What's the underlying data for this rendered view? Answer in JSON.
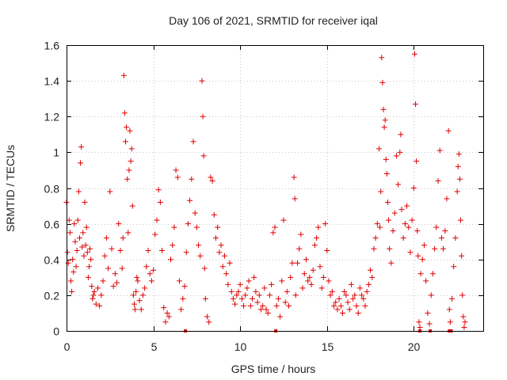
{
  "chart_data": {
    "type": "scatter",
    "title": "Day 106 of 2021, SRMTID for receiver iqal",
    "xlabel": "GPS time / hours",
    "ylabel": "SRMTID / TECUs",
    "xlim": [
      0,
      24
    ],
    "ylim": [
      0,
      1.6
    ],
    "xticks": [
      0,
      5,
      10,
      15,
      20
    ],
    "xtick_labels": [
      "0",
      "5",
      "10",
      "15",
      "20"
    ],
    "yticks": [
      0,
      0.2,
      0.4,
      0.6,
      0.8,
      1.0,
      1.2,
      1.4,
      1.6
    ],
    "ytick_labels": [
      "0",
      "0.2",
      "0.4",
      "0.6",
      "0.8",
      "1",
      "1.2",
      "1.4",
      "1.6"
    ],
    "grid": true,
    "marker": "+",
    "color": "#e00000",
    "series": [
      {
        "name": "SRMTID",
        "points": [
          [
            0.0,
            0.72
          ],
          [
            0.05,
            0.44
          ],
          [
            0.1,
            0.38
          ],
          [
            0.15,
            0.62
          ],
          [
            0.2,
            0.55
          ],
          [
            0.25,
            0.28
          ],
          [
            0.3,
            0.22
          ],
          [
            0.35,
            0.4
          ],
          [
            0.4,
            0.33
          ],
          [
            0.45,
            0.6
          ],
          [
            0.5,
            0.5
          ],
          [
            0.55,
            0.36
          ],
          [
            0.6,
            0.45
          ],
          [
            0.65,
            0.62
          ],
          [
            0.7,
            0.78
          ],
          [
            0.75,
            0.52
          ],
          [
            0.8,
            0.94
          ],
          [
            0.85,
            1.03
          ],
          [
            0.9,
            0.47
          ],
          [
            0.95,
            0.55
          ],
          [
            1.0,
            0.42
          ],
          [
            1.05,
            0.72
          ],
          [
            1.1,
            0.48
          ],
          [
            1.15,
            0.58
          ],
          [
            1.2,
            0.44
          ],
          [
            1.25,
            0.3
          ],
          [
            1.3,
            0.36
          ],
          [
            1.35,
            0.46
          ],
          [
            1.4,
            0.4
          ],
          [
            1.45,
            0.25
          ],
          [
            1.5,
            0.18
          ],
          [
            1.55,
            0.2
          ],
          [
            1.6,
            0.22
          ],
          [
            1.7,
            0.15
          ],
          [
            1.8,
            0.24
          ],
          [
            1.9,
            0.14
          ],
          [
            2.0,
            0.2
          ],
          [
            2.1,
            0.28
          ],
          [
            2.2,
            0.42
          ],
          [
            2.3,
            0.52
          ],
          [
            2.4,
            0.35
          ],
          [
            2.5,
            0.78
          ],
          [
            2.6,
            0.46
          ],
          [
            2.7,
            0.25
          ],
          [
            2.8,
            0.32
          ],
          [
            2.9,
            0.27
          ],
          [
            3.0,
            0.6
          ],
          [
            3.1,
            0.45
          ],
          [
            3.2,
            0.35
          ],
          [
            3.25,
            0.52
          ],
          [
            3.3,
            1.43
          ],
          [
            3.35,
            1.22
          ],
          [
            3.4,
            1.06
          ],
          [
            3.45,
            1.14
          ],
          [
            3.5,
            0.85
          ],
          [
            3.55,
            0.55
          ],
          [
            3.6,
            0.9
          ],
          [
            3.65,
            1.12
          ],
          [
            3.7,
            0.95
          ],
          [
            3.75,
            1.02
          ],
          [
            3.8,
            0.7
          ],
          [
            3.85,
            0.2
          ],
          [
            3.9,
            0.15
          ],
          [
            3.95,
            0.12
          ],
          [
            4.0,
            0.22
          ],
          [
            4.05,
            0.3
          ],
          [
            4.1,
            0.28
          ],
          [
            4.2,
            0.17
          ],
          [
            4.3,
            0.12
          ],
          [
            4.4,
            0.2
          ],
          [
            4.5,
            0.24
          ],
          [
            4.6,
            0.36
          ],
          [
            4.7,
            0.45
          ],
          [
            4.8,
            0.32
          ],
          [
            4.9,
            0.28
          ],
          [
            5.0,
            0.34
          ],
          [
            5.1,
            0.54
          ],
          [
            5.2,
            0.62
          ],
          [
            5.3,
            0.79
          ],
          [
            5.4,
            0.72
          ],
          [
            5.5,
            0.45
          ],
          [
            5.6,
            0.13
          ],
          [
            5.7,
            0.05
          ],
          [
            5.8,
            0.1
          ],
          [
            5.9,
            0.08
          ],
          [
            6.0,
            0.4
          ],
          [
            6.1,
            0.48
          ],
          [
            6.2,
            0.58
          ],
          [
            6.3,
            0.9
          ],
          [
            6.4,
            0.86
          ],
          [
            6.5,
            0.28
          ],
          [
            6.6,
            0.12
          ],
          [
            6.7,
            0.18
          ],
          [
            6.8,
            0.25
          ],
          [
            6.9,
            0.44
          ],
          [
            7.0,
            0.6
          ],
          [
            7.1,
            0.73
          ],
          [
            7.2,
            0.85
          ],
          [
            7.3,
            1.06
          ],
          [
            7.4,
            0.66
          ],
          [
            7.5,
            0.58
          ],
          [
            7.6,
            0.48
          ],
          [
            7.7,
            0.42
          ],
          [
            7.8,
            1.4
          ],
          [
            7.85,
            1.2
          ],
          [
            7.9,
            0.98
          ],
          [
            7.95,
            0.35
          ],
          [
            8.0,
            0.18
          ],
          [
            8.1,
            0.08
          ],
          [
            8.2,
            0.05
          ],
          [
            8.3,
            0.86
          ],
          [
            8.4,
            0.84
          ],
          [
            8.5,
            0.65
          ],
          [
            8.6,
            0.52
          ],
          [
            8.7,
            0.58
          ],
          [
            8.8,
            0.44
          ],
          [
            8.9,
            0.48
          ],
          [
            9.0,
            0.36
          ],
          [
            9.1,
            0.42
          ],
          [
            9.2,
            0.32
          ],
          [
            9.3,
            0.26
          ],
          [
            9.4,
            0.38
          ],
          [
            9.5,
            0.22
          ],
          [
            9.6,
            0.18
          ],
          [
            9.7,
            0.15
          ],
          [
            9.8,
            0.2
          ],
          [
            9.9,
            0.22
          ],
          [
            10.0,
            0.26
          ],
          [
            10.1,
            0.18
          ],
          [
            10.2,
            0.14
          ],
          [
            10.3,
            0.2
          ],
          [
            10.4,
            0.24
          ],
          [
            10.5,
            0.28
          ],
          [
            10.6,
            0.14
          ],
          [
            10.7,
            0.18
          ],
          [
            10.8,
            0.3
          ],
          [
            10.9,
            0.22
          ],
          [
            11.0,
            0.16
          ],
          [
            11.1,
            0.2
          ],
          [
            11.2,
            0.12
          ],
          [
            11.3,
            0.14
          ],
          [
            11.4,
            0.24
          ],
          [
            11.5,
            0.12
          ],
          [
            11.6,
            0.1
          ],
          [
            11.7,
            0.2
          ],
          [
            11.8,
            0.26
          ],
          [
            11.9,
            0.55
          ],
          [
            12.0,
            0.58
          ],
          [
            12.1,
            0.14
          ],
          [
            12.2,
            0.18
          ],
          [
            12.3,
            0.08
          ],
          [
            12.4,
            0.28
          ],
          [
            12.5,
            0.62
          ],
          [
            12.6,
            0.16
          ],
          [
            12.7,
            0.22
          ],
          [
            12.8,
            0.14
          ],
          [
            12.9,
            0.3
          ],
          [
            13.0,
            0.38
          ],
          [
            13.1,
            0.86
          ],
          [
            13.15,
            0.74
          ],
          [
            13.2,
            0.2
          ],
          [
            13.3,
            0.38
          ],
          [
            13.4,
            0.46
          ],
          [
            13.5,
            0.54
          ],
          [
            13.6,
            0.24
          ],
          [
            13.7,
            0.32
          ],
          [
            13.8,
            0.4
          ],
          [
            13.9,
            0.28
          ],
          [
            14.0,
            0.3
          ],
          [
            14.1,
            0.26
          ],
          [
            14.2,
            0.34
          ],
          [
            14.3,
            0.48
          ],
          [
            14.4,
            0.52
          ],
          [
            14.5,
            0.58
          ],
          [
            14.6,
            0.36
          ],
          [
            14.7,
            0.24
          ],
          [
            14.8,
            0.3
          ],
          [
            14.9,
            0.6
          ],
          [
            15.0,
            0.45
          ],
          [
            15.1,
            0.28
          ],
          [
            15.2,
            0.2
          ],
          [
            15.3,
            0.22
          ],
          [
            15.4,
            0.14
          ],
          [
            15.5,
            0.16
          ],
          [
            15.6,
            0.12
          ],
          [
            15.7,
            0.18
          ],
          [
            15.8,
            0.14
          ],
          [
            15.9,
            0.1
          ],
          [
            16.0,
            0.22
          ],
          [
            16.1,
            0.2
          ],
          [
            16.2,
            0.16
          ],
          [
            16.3,
            0.12
          ],
          [
            16.4,
            0.26
          ],
          [
            16.5,
            0.18
          ],
          [
            16.6,
            0.2
          ],
          [
            16.7,
            0.14
          ],
          [
            16.8,
            0.1
          ],
          [
            16.9,
            0.24
          ],
          [
            17.0,
            0.2
          ],
          [
            17.1,
            0.18
          ],
          [
            17.2,
            0.14
          ],
          [
            17.3,
            0.22
          ],
          [
            17.4,
            0.26
          ],
          [
            17.5,
            0.34
          ],
          [
            17.6,
            0.3
          ],
          [
            17.7,
            0.46
          ],
          [
            17.8,
            0.52
          ],
          [
            17.9,
            0.6
          ],
          [
            18.0,
            1.02
          ],
          [
            18.05,
            0.58
          ],
          [
            18.1,
            0.78
          ],
          [
            18.15,
            1.53
          ],
          [
            18.2,
            1.39
          ],
          [
            18.25,
            1.24
          ],
          [
            18.3,
            1.14
          ],
          [
            18.35,
            1.18
          ],
          [
            18.4,
            0.96
          ],
          [
            18.45,
            0.88
          ],
          [
            18.5,
            0.72
          ],
          [
            18.55,
            0.62
          ],
          [
            18.6,
            0.46
          ],
          [
            18.7,
            0.38
          ],
          [
            18.8,
            0.56
          ],
          [
            18.9,
            0.66
          ],
          [
            19.0,
            0.98
          ],
          [
            19.1,
            0.82
          ],
          [
            19.2,
            1.0
          ],
          [
            19.25,
            1.1
          ],
          [
            19.3,
            0.68
          ],
          [
            19.4,
            0.52
          ],
          [
            19.5,
            0.6
          ],
          [
            19.6,
            0.7
          ],
          [
            19.7,
            0.58
          ],
          [
            19.8,
            0.44
          ],
          [
            19.9,
            0.62
          ],
          [
            20.0,
            0.8
          ],
          [
            20.05,
            1.55
          ],
          [
            20.1,
            1.27
          ],
          [
            20.15,
            0.95
          ],
          [
            20.2,
            0.56
          ],
          [
            20.25,
            0.42
          ],
          [
            20.3,
            0.05
          ],
          [
            20.35,
            0.02
          ],
          [
            20.4,
            0.32
          ],
          [
            20.5,
            0.4
          ],
          [
            20.6,
            0.48
          ],
          [
            20.7,
            0.28
          ],
          [
            20.8,
            0.1
          ],
          [
            20.9,
            0.04
          ],
          [
            21.0,
            0.2
          ],
          [
            21.1,
            0.32
          ],
          [
            21.2,
            0.46
          ],
          [
            21.3,
            0.58
          ],
          [
            21.4,
            0.84
          ],
          [
            21.5,
            1.01
          ],
          [
            21.6,
            0.52
          ],
          [
            21.7,
            0.46
          ],
          [
            21.8,
            0.56
          ],
          [
            21.9,
            0.74
          ],
          [
            22.0,
            1.12
          ],
          [
            22.05,
            0.12
          ],
          [
            22.1,
            0.05
          ],
          [
            22.2,
            0.18
          ],
          [
            22.3,
            0.36
          ],
          [
            22.4,
            0.52
          ],
          [
            22.5,
            0.78
          ],
          [
            22.55,
            0.92
          ],
          [
            22.6,
            0.99
          ],
          [
            22.65,
            0.85
          ],
          [
            22.7,
            0.62
          ],
          [
            22.75,
            0.42
          ],
          [
            22.8,
            0.2
          ],
          [
            22.85,
            0.08
          ],
          [
            22.9,
            0.02
          ],
          [
            22.95,
            0.05
          ]
        ]
      }
    ],
    "zero_markers_x": [
      6.85,
      12.05,
      20.35,
      20.95,
      22.05,
      22.15
    ]
  }
}
